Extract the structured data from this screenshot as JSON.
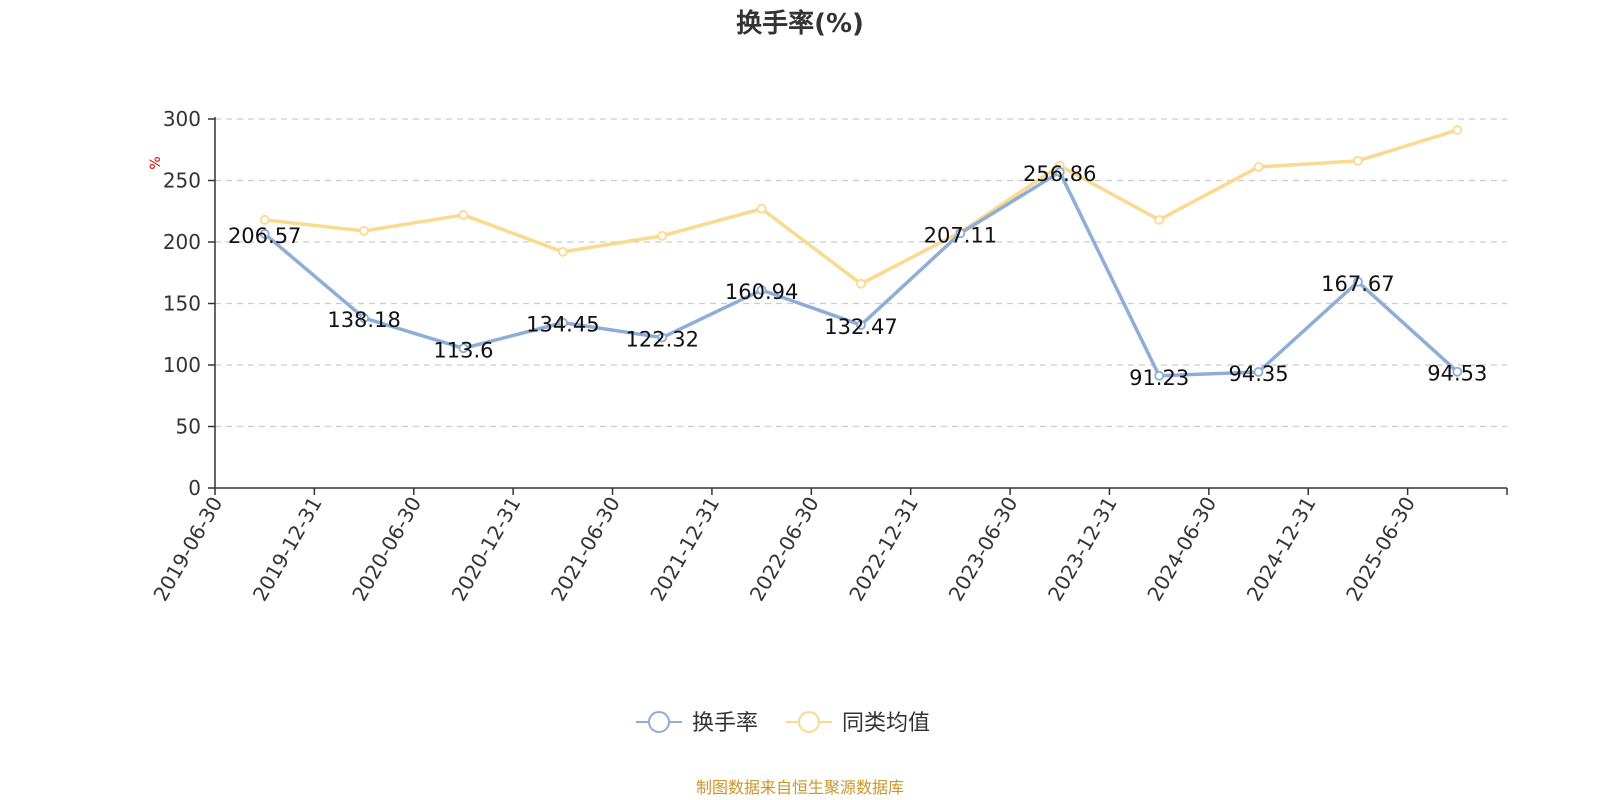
{
  "chart_data": {
    "type": "line",
    "title": "换手率(%)",
    "ylabel": "%",
    "ylim": [
      0,
      300
    ],
    "yticks": [
      0,
      50,
      100,
      150,
      200,
      250,
      300
    ],
    "grid": true,
    "categories": [
      "2019-06-30",
      "2019-12-31",
      "2020-06-30",
      "2020-12-31",
      "2021-06-30",
      "2021-12-31",
      "2022-06-30",
      "2022-12-31",
      "2023-06-30",
      "2023-12-31",
      "2024-06-30",
      "2024-12-31",
      "2025-06-30"
    ],
    "series": [
      {
        "name": "换手率",
        "color": "#8eadd8",
        "values": [
          206.57,
          138.18,
          113.6,
          134.45,
          122.32,
          160.94,
          132.47,
          207.11,
          256.86,
          91.23,
          94.35,
          167.67,
          94.53
        ],
        "labels": [
          "206.57",
          "138.18",
          "113.6",
          "134.45",
          "122.32",
          "160.94",
          "132.47",
          "207.11",
          "256.86",
          "91.23",
          "94.35",
          "167.67",
          "94.53"
        ]
      },
      {
        "name": "同类均值",
        "color": "#fbd98e",
        "values": [
          218,
          209,
          222,
          192,
          205,
          227,
          166,
          208,
          262,
          218,
          261,
          266,
          291
        ]
      }
    ],
    "legend_position": "bottom-center"
  },
  "source_note": "制图数据来自恒生聚源数据库"
}
